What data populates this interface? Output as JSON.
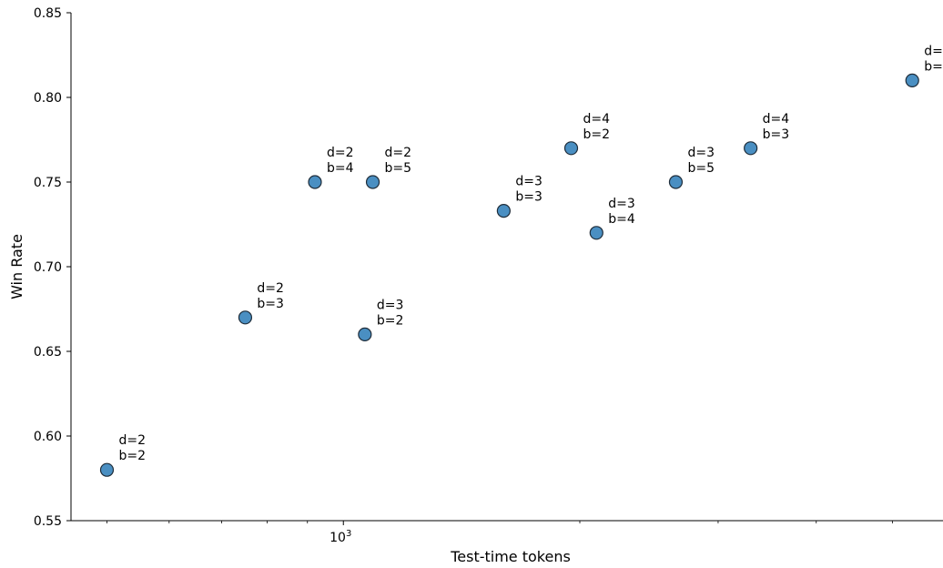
{
  "chart_data": {
    "type": "scatter",
    "title": "",
    "xlabel": "Test-time tokens",
    "ylabel": "Win Rate",
    "xscale": "log",
    "xlim": [
      450,
      5800
    ],
    "ylim": [
      0.55,
      0.85
    ],
    "yticks": [
      "0.55",
      "0.60",
      "0.65",
      "0.70",
      "0.75",
      "0.80",
      "0.85"
    ],
    "xticks": [
      {
        "value": 1000,
        "base": "10",
        "exp": "3"
      }
    ],
    "grid": false,
    "marker_color": "#4a8fc2",
    "marker_edge_color": "#1f2d3a",
    "points": [
      {
        "x": 500,
        "y": 0.58,
        "label1": "d=2",
        "label2": "b=2"
      },
      {
        "x": 750,
        "y": 0.67,
        "label1": "d=2",
        "label2": "b=3"
      },
      {
        "x": 920,
        "y": 0.75,
        "label1": "d=2",
        "label2": "b=4"
      },
      {
        "x": 1065,
        "y": 0.66,
        "label1": "d=3",
        "label2": "b=2"
      },
      {
        "x": 1090,
        "y": 0.75,
        "label1": "d=2",
        "label2": "b=5"
      },
      {
        "x": 1600,
        "y": 0.733,
        "label1": "d=3",
        "label2": "b=3"
      },
      {
        "x": 1950,
        "y": 0.77,
        "label1": "d=4",
        "label2": "b=2"
      },
      {
        "x": 2100,
        "y": 0.72,
        "label1": "d=3",
        "label2": "b=4"
      },
      {
        "x": 2650,
        "y": 0.75,
        "label1": "d=3",
        "label2": "b=5"
      },
      {
        "x": 3300,
        "y": 0.77,
        "label1": "d=4",
        "label2": "b=3"
      },
      {
        "x": 5300,
        "y": 0.81,
        "label1": "d=",
        "label2": "b="
      }
    ]
  }
}
